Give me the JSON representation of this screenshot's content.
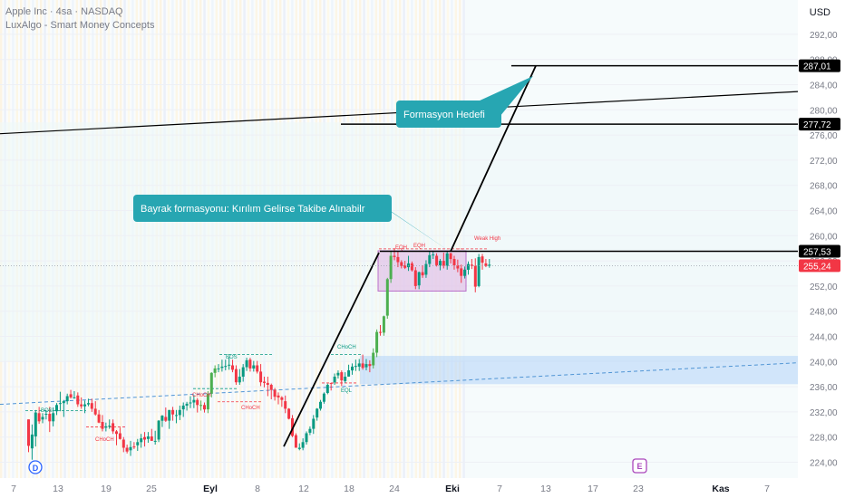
{
  "header": {
    "title": "Apple Inc · 4sa · NASDAQ",
    "indicator": "LuxAlgo - Smart Money Concepts",
    "currency": "USD"
  },
  "chart_data": {
    "type": "candlestick",
    "ylim": [
      221,
      296
    ],
    "y_ticks": [
      "224,00",
      "228,00",
      "232,00",
      "236,00",
      "240,00",
      "244,00",
      "248,00",
      "252,00",
      "256,00",
      "260,00",
      "264,00",
      "268,00",
      "272,00",
      "276,00",
      "280,00",
      "284,00",
      "288,00",
      "292,00"
    ],
    "x_ticks": [
      {
        "label": "7",
        "bold": false
      },
      {
        "label": "13",
        "bold": false
      },
      {
        "label": "19",
        "bold": false
      },
      {
        "label": "25",
        "bold": false
      },
      {
        "label": "Eyl",
        "bold": true
      },
      {
        "label": "8",
        "bold": false
      },
      {
        "label": "12",
        "bold": false
      },
      {
        "label": "18",
        "bold": false
      },
      {
        "label": "24",
        "bold": false
      },
      {
        "label": "Eki",
        "bold": true
      },
      {
        "label": "7",
        "bold": false
      },
      {
        "label": "13",
        "bold": false
      },
      {
        "label": "17",
        "bold": false
      },
      {
        "label": "23",
        "bold": false
      },
      {
        "label": "Kas",
        "bold": true
      },
      {
        "label": "7",
        "bold": false
      }
    ],
    "price_tags": [
      {
        "value": 287.01,
        "label": "287,01",
        "bg": "#000000",
        "fg": "#ffffff"
      },
      {
        "value": 277.72,
        "label": "277,72",
        "bg": "#000000",
        "fg": "#ffffff"
      },
      {
        "value": 257.53,
        "label": "257,53",
        "bg": "#000000",
        "fg": "#ffffff"
      },
      {
        "value": 255.24,
        "label": "255,24",
        "bg": "#f23645",
        "fg": "#ffffff"
      }
    ],
    "annotations": [
      {
        "text": "Formasyon Hedefi"
      },
      {
        "text": "Bayrak formasyonu: Kırılım Gelirse Takibe Alınabilr"
      }
    ],
    "smc_labels": [
      "BOS",
      "CHoCH",
      "BOS",
      "CHoCH",
      "CHoCH",
      "CHoCH",
      "EQL",
      "EQH",
      "EQH",
      "Weak High"
    ],
    "markers": [
      "D",
      "E"
    ],
    "colors": {
      "up": "#089981",
      "down": "#f23645",
      "bull_bar": "#4caf50",
      "callout": "#27a6b2",
      "flag_box": "#ce93d8",
      "demand_zone": "#bbdefb",
      "grid": "#f0f3fa"
    },
    "candles": [
      [
        230.8,
        230.8,
        225.6,
        226.6
      ],
      [
        226.2,
        230.0,
        224.4,
        228.4
      ],
      [
        228.1,
        232.3,
        226.5,
        231.9
      ],
      [
        231.8,
        232.8,
        230.1,
        230.5
      ],
      [
        230.8,
        231.8,
        230.2,
        231.2
      ],
      [
        231.6,
        232.3,
        230.8,
        231.7
      ],
      [
        231.7,
        232.8,
        228.8,
        230.5
      ],
      [
        230.5,
        232.7,
        229.7,
        231.8
      ],
      [
        232.1,
        233.4,
        231.5,
        233.1
      ],
      [
        233.3,
        235.2,
        232.1,
        233.4
      ],
      [
        233.4,
        233.9,
        231.2,
        233.7
      ],
      [
        233.7,
        234.9,
        233.2,
        234.5
      ],
      [
        234.8,
        235.5,
        234.1,
        234.3
      ],
      [
        234.3,
        235.3,
        234.1,
        234.3
      ],
      [
        234.6,
        235.1,
        232.8,
        233.2
      ],
      [
        233.2,
        234.3,
        232.5,
        232.9
      ],
      [
        232.9,
        233.8,
        231.8,
        233.2
      ],
      [
        233.2,
        234.1,
        232.9,
        233.4
      ],
      [
        233.4,
        234.1,
        232.0,
        232.5
      ],
      [
        232.5,
        233.7,
        231.4,
        231.6
      ],
      [
        231.6,
        232.3,
        230.2,
        230.3
      ],
      [
        230.4,
        231.5,
        228.9,
        229.3
      ],
      [
        229.5,
        230.3,
        228.9,
        229.7
      ],
      [
        229.7,
        230.8,
        229.3,
        229.8
      ],
      [
        230.2,
        230.8,
        228.5,
        228.9
      ],
      [
        228.9,
        229.1,
        226.7,
        228.5
      ],
      [
        228.6,
        229.5,
        227.6,
        227.7
      ],
      [
        227.6,
        228.0,
        225.6,
        226.3
      ],
      [
        226.3,
        226.8,
        225.4,
        225.7
      ],
      [
        225.9,
        227.4,
        225.0,
        226.4
      ],
      [
        226.5,
        227.2,
        226.1,
        226.4
      ],
      [
        226.7,
        227.7,
        225.8,
        227.2
      ],
      [
        227.2,
        228.5,
        226.3,
        227.8
      ],
      [
        228.0,
        228.8,
        226.5,
        227.6
      ],
      [
        227.7,
        228.8,
        227.1,
        228.1
      ],
      [
        228.1,
        229.3,
        227.4,
        227.4
      ],
      [
        227.4,
        229.0,
        226.8,
        227.4
      ],
      [
        227.6,
        230.7,
        227.2,
        230.6
      ],
      [
        230.6,
        231.5,
        229.6,
        231.4
      ],
      [
        231.2,
        232.7,
        230.4,
        230.6
      ],
      [
        230.6,
        232.3,
        229.3,
        232.3
      ],
      [
        232.3,
        232.8,
        230.6,
        231.6
      ],
      [
        231.4,
        232.3,
        230.2,
        231.5
      ],
      [
        231.5,
        233.0,
        230.7,
        232.3
      ],
      [
        232.4,
        233.5,
        231.2,
        233.0
      ],
      [
        233.0,
        233.6,
        232.2,
        233.3
      ],
      [
        233.4,
        234.5,
        232.6,
        233.5
      ],
      [
        233.5,
        234.7,
        232.6,
        233.9
      ],
      [
        233.9,
        234.2,
        231.9,
        233.1
      ],
      [
        233.1,
        233.8,
        232.2,
        233.1
      ],
      [
        233.1,
        233.5,
        231.9,
        232.4
      ],
      [
        232.4,
        235.3,
        231.8,
        234.9
      ],
      [
        234.9,
        238.3,
        234.3,
        238.2
      ],
      [
        238.2,
        239.4,
        237.5,
        238.9
      ],
      [
        238.9,
        239.6,
        238.3,
        238.9
      ],
      [
        239.0,
        240.3,
        238.4,
        239.2
      ],
      [
        239.2,
        240.3,
        238.6,
        239.3
      ],
      [
        239.4,
        240.7,
        238.7,
        239.5
      ],
      [
        239.4,
        240.3,
        238.3,
        238.7
      ],
      [
        238.8,
        239.4,
        236.3,
        236.7
      ],
      [
        236.7,
        238.8,
        236.3,
        237.6
      ],
      [
        237.6,
        239.6,
        236.8,
        239.1
      ],
      [
        239.1,
        240.6,
        238.5,
        240.2
      ],
      [
        240.3,
        240.6,
        238.4,
        238.9
      ],
      [
        238.9,
        240.1,
        238.4,
        239.4
      ],
      [
        239.4,
        240.1,
        238.1,
        238.4
      ],
      [
        238.4,
        239.6,
        236.1,
        236.7
      ],
      [
        236.8,
        237.6,
        235.9,
        236.6
      ],
      [
        236.6,
        237.6,
        234.5,
        236.3
      ],
      [
        236.3,
        236.5,
        234.0,
        235.5
      ],
      [
        235.5,
        235.8,
        233.8,
        234.4
      ],
      [
        234.6,
        235.1,
        233.2,
        234.3
      ],
      [
        234.3,
        234.5,
        232.8,
        233.9
      ],
      [
        233.7,
        234.6,
        231.8,
        232.5
      ],
      [
        232.5,
        232.6,
        230.8,
        230.9
      ],
      [
        231.0,
        231.5,
        228.0,
        228.2
      ],
      [
        228.3,
        228.6,
        226.3,
        226.3
      ],
      [
        226.1,
        227.0,
        225.9,
        226.3
      ],
      [
        226.3,
        227.8,
        225.9,
        227.2
      ],
      [
        227.2,
        228.9,
        226.8,
        228.6
      ],
      [
        228.7,
        229.7,
        228.3,
        229.3
      ],
      [
        229.3,
        231.5,
        228.5,
        230.9
      ],
      [
        231.1,
        232.6,
        230.6,
        232.5
      ],
      [
        232.5,
        233.9,
        232.2,
        233.6
      ],
      [
        233.6,
        235.1,
        233.3,
        234.9
      ],
      [
        235.0,
        236.5,
        234.8,
        236.3
      ],
      [
        236.6,
        236.6,
        235.4,
        236.5
      ],
      [
        236.7,
        238.1,
        236.3,
        237.6
      ],
      [
        237.8,
        238.6,
        237.3,
        238.2
      ],
      [
        238.3,
        238.6,
        236.1,
        237.0
      ],
      [
        236.9,
        238.3,
        236.6,
        237.6
      ],
      [
        237.6,
        239.5,
        237.6,
        238.6
      ],
      [
        238.6,
        239.7,
        237.9,
        239.2
      ],
      [
        239.2,
        240.3,
        238.5,
        239.3
      ],
      [
        239.2,
        240.4,
        238.5,
        239.7
      ],
      [
        239.7,
        241.1,
        238.7,
        239.0
      ],
      [
        239.1,
        240.4,
        238.6,
        239.6
      ],
      [
        239.6,
        240.2,
        238.3,
        239.3
      ],
      [
        239.4,
        242.1,
        238.9,
        241.4
      ],
      [
        241.4,
        245.1,
        240.7,
        244.7
      ],
      [
        244.7,
        245.8,
        244.1,
        244.6
      ],
      [
        244.6,
        247.3,
        244.1,
        247.2
      ],
      [
        247.3,
        253.3,
        246.8,
        253.1
      ],
      [
        253.1,
        257.6,
        252.5,
        256.8
      ],
      [
        256.8,
        258.0,
        256.1,
        256.6
      ],
      [
        256.6,
        257.5,
        255.0,
        255.8
      ],
      [
        255.8,
        256.1,
        254.8,
        255.2
      ],
      [
        255.3,
        256.0,
        254.7,
        254.9
      ],
      [
        255.0,
        256.8,
        254.4,
        255.6
      ],
      [
        255.6,
        255.9,
        254.3,
        254.5
      ],
      [
        254.5,
        255.0,
        251.5,
        252.0
      ],
      [
        252.1,
        254.3,
        251.5,
        254.2
      ],
      [
        254.2,
        255.3,
        253.3,
        253.7
      ],
      [
        253.8,
        256.1,
        253.3,
        255.5
      ],
      [
        255.5,
        257.5,
        255.0,
        256.9
      ],
      [
        256.9,
        257.5,
        256.3,
        257.0
      ],
      [
        256.8,
        257.2,
        255.1,
        255.3
      ],
      [
        255.3,
        256.3,
        254.5,
        256.0
      ],
      [
        256.0,
        257.3,
        254.8,
        255.2
      ],
      [
        255.2,
        257.5,
        254.6,
        257.2
      ],
      [
        257.2,
        257.3,
        255.6,
        256.3
      ],
      [
        256.3,
        256.8,
        254.6,
        255.3
      ],
      [
        255.3,
        256.2,
        254.2,
        254.8
      ],
      [
        254.8,
        255.4,
        252.5,
        253.6
      ],
      [
        253.6,
        255.1,
        253.2,
        254.6
      ],
      [
        254.6,
        255.9,
        253.8,
        255.5
      ],
      [
        255.4,
        256.3,
        254.7,
        255.2
      ],
      [
        255.2,
        256.4,
        251.0,
        251.9
      ],
      [
        252.0,
        257.1,
        251.8,
        256.6
      ],
      [
        256.7,
        257.1,
        254.6,
        255.7
      ],
      [
        255.6,
        256.3,
        255.0,
        255.2
      ],
      [
        255.2,
        256.3,
        254.9,
        255.4
      ]
    ]
  }
}
